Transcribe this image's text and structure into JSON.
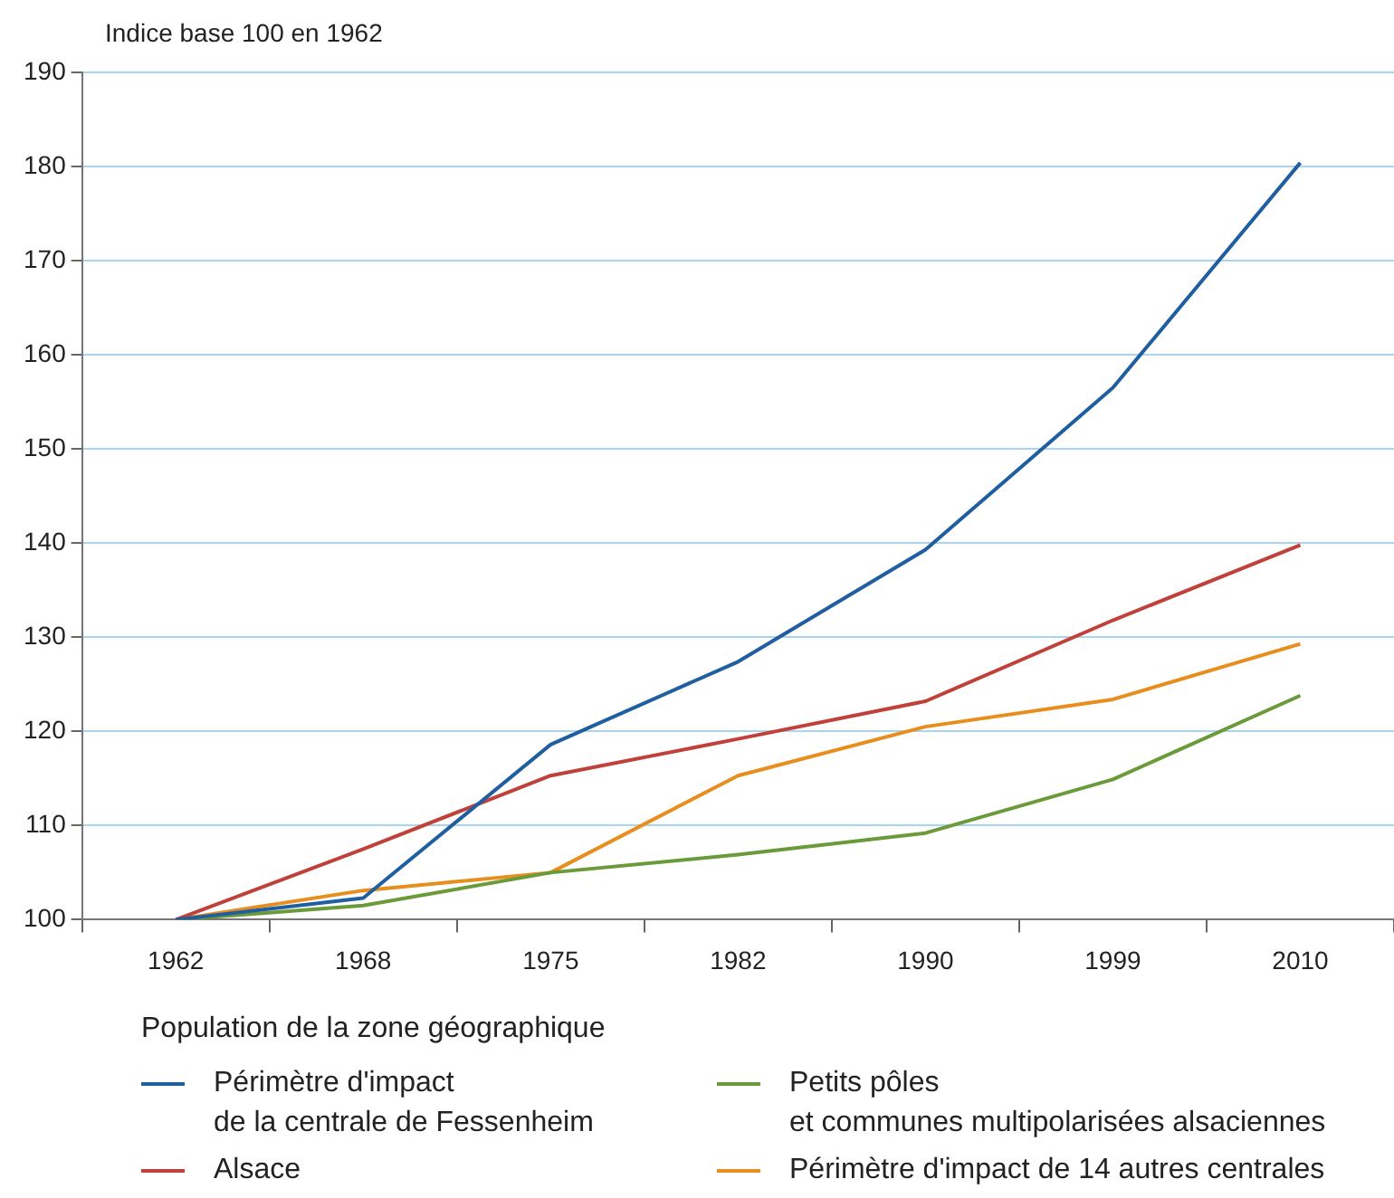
{
  "chart_data": {
    "type": "line",
    "ylabel": "Indice base 100 en 1962",
    "legend_title": "Population de la zone géographique",
    "categories": [
      "1962",
      "1968",
      "1975",
      "1982",
      "1990",
      "1999",
      "2010"
    ],
    "series": [
      {
        "name": "Périmètre d'impact\nde la centrale de Fessenheim",
        "color": "#1f5fa0",
        "values": [
          100,
          102.3,
          118.6,
          127.4,
          139.3,
          156.5,
          180.4
        ]
      },
      {
        "name": "Alsace",
        "color": "#c0403a",
        "values": [
          100,
          107.5,
          115.3,
          119.2,
          123.2,
          131.8,
          139.8
        ]
      },
      {
        "name": "Petits pôles\net communes multipolarisées alsaciennes",
        "color": "#6a9a3a",
        "values": [
          100,
          101.5,
          105,
          106.9,
          109.2,
          114.9,
          123.8
        ]
      },
      {
        "name": "Périmètre d'impact de 14 autres centrales",
        "color": "#e88e1e",
        "values": [
          100,
          103.1,
          105,
          115.3,
          120.5,
          123.4,
          129.3
        ]
      }
    ],
    "ylim": [
      100,
      190
    ],
    "yticks": [
      100,
      110,
      120,
      130,
      140,
      150,
      160,
      170,
      180,
      190
    ],
    "grid": "y",
    "legend": "bottom",
    "marker": "none",
    "line_style": "solid"
  }
}
